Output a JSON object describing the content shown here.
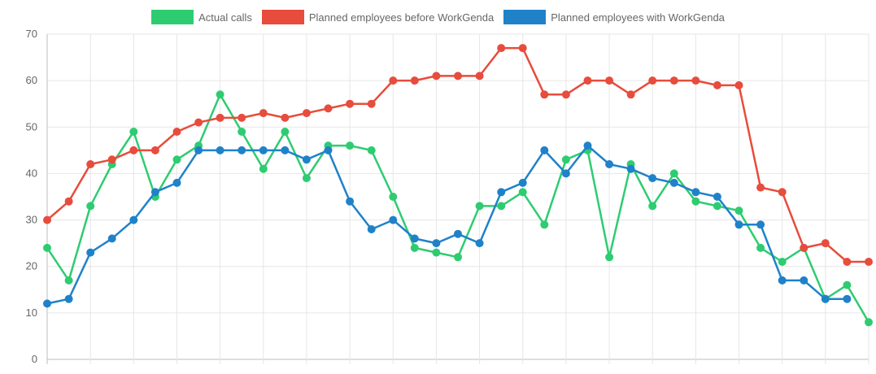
{
  "chart_data": {
    "type": "line",
    "title": "",
    "xlabel": "",
    "ylabel": "",
    "ylim": [
      0,
      70
    ],
    "yticks": [
      0,
      10,
      20,
      30,
      40,
      50,
      60,
      70
    ],
    "grid": true,
    "legend": "top-center",
    "x": [
      1,
      2,
      3,
      4,
      5,
      6,
      7,
      8,
      9,
      10,
      11,
      12,
      13,
      14,
      15,
      16,
      17,
      18,
      19,
      20,
      21,
      22,
      23,
      24,
      25,
      26,
      27,
      28,
      29,
      30,
      31,
      32,
      33,
      34,
      35,
      36,
      37,
      38,
      39
    ],
    "series": [
      {
        "name": "Actual calls",
        "color": "#2ecc71",
        "values": [
          24,
          17,
          33,
          42,
          49,
          35,
          43,
          46,
          57,
          49,
          41,
          49,
          39,
          46,
          46,
          45,
          35,
          24,
          23,
          22,
          33,
          33,
          36,
          29,
          43,
          45,
          22,
          42,
          33,
          40,
          34,
          33,
          32,
          24,
          21,
          24,
          13,
          16,
          8
        ]
      },
      {
        "name": "Planned employees before WorkGenda",
        "color": "#e74c3c",
        "values": [
          30,
          34,
          42,
          43,
          45,
          45,
          49,
          51,
          52,
          52,
          53,
          52,
          53,
          54,
          55,
          55,
          60,
          60,
          61,
          61,
          61,
          67,
          67,
          57,
          57,
          60,
          60,
          57,
          60,
          60,
          60,
          59,
          59,
          37,
          36,
          24,
          25,
          21,
          21
        ]
      },
      {
        "name": "Planned employees with WorkGenda",
        "color": "#1f82c9",
        "values": [
          12,
          13,
          23,
          26,
          30,
          36,
          38,
          45,
          45,
          45,
          45,
          45,
          43,
          45,
          34,
          28,
          30,
          26,
          25,
          27,
          25,
          36,
          38,
          45,
          40,
          46,
          42,
          41,
          39,
          38,
          36,
          35,
          29,
          29,
          17,
          17,
          13,
          13,
          null
        ]
      }
    ]
  }
}
